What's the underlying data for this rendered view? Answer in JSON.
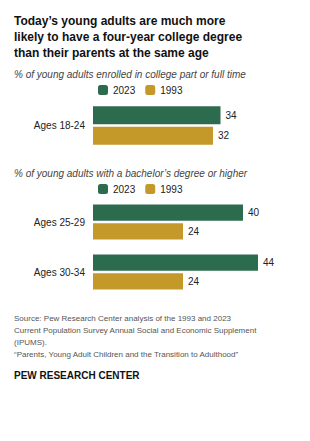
{
  "chart_data": [
    {
      "type": "bar",
      "orientation": "horizontal",
      "title": "Today’s young adults are much more\nlikely to have a four-year college degree\nthan their parents at the same age",
      "subtitle": "% of young adults enrolled in college part or full time",
      "categories": [
        "Ages 18-24"
      ],
      "series": [
        {
          "name": "2023",
          "color": "#2d6b4f",
          "values": [
            34
          ]
        },
        {
          "name": "1993",
          "color": "#c4992a",
          "values": [
            32
          ]
        }
      ],
      "xlim": [
        0,
        48
      ],
      "tick_labels": false,
      "grid": false,
      "data_labels": true,
      "legend": "upper left"
    },
    {
      "type": "bar",
      "orientation": "horizontal",
      "subtitle": "% of young adults with a bachelor’s degree or higher",
      "categories": [
        "Ages 25-29",
        "Ages 30-34"
      ],
      "series": [
        {
          "name": "2023",
          "color": "#2d6b4f",
          "values": [
            40,
            44
          ]
        },
        {
          "name": "1993",
          "color": "#c4992a",
          "values": [
            24,
            24
          ]
        }
      ],
      "xlim": [
        0,
        48
      ],
      "tick_labels": false,
      "grid": false,
      "data_labels": true,
      "legend": "upper left",
      "annotations": [
        "Source: Pew Research Center analysis of the 1993 and 2023\nCurrent Population Survey Annual Social and Economic Supplement\n(IPUMS).\n“Parents, Young Adult Children and the Transition to Adulthood”",
        "PEW RESEARCH CENTER"
      ]
    }
  ]
}
